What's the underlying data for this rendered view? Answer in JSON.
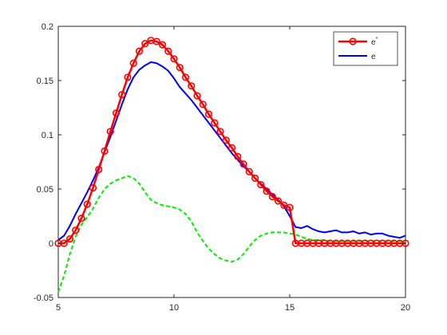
{
  "chart_data": {
    "type": "line",
    "title": "",
    "xlabel": "",
    "ylabel": "",
    "xlim": [
      5,
      20
    ],
    "ylim": [
      -0.05,
      0.2
    ],
    "xticks": [
      5,
      10,
      15,
      20
    ],
    "yticks": [
      -0.05,
      0,
      0.05,
      0.1,
      0.15,
      0.2
    ],
    "xtick_labels": [
      "5",
      "10",
      "15",
      "20"
    ],
    "ytick_labels": [
      "-0.05",
      "0",
      "0.05",
      "0.1",
      "0.15",
      "0.2"
    ],
    "grid": true,
    "legend_position": "top-right",
    "series": [
      {
        "name": "e*",
        "legend_label": "e",
        "legend_superscript": "*",
        "color": "#ff0000",
        "style": "solid",
        "marker": "circle",
        "x": [
          5,
          5.25,
          5.5,
          5.75,
          6,
          6.25,
          6.5,
          6.75,
          7,
          7.25,
          7.5,
          7.75,
          8,
          8.25,
          8.5,
          8.75,
          9,
          9.25,
          9.5,
          9.75,
          10,
          10.25,
          10.5,
          10.75,
          11,
          11.25,
          11.5,
          11.75,
          12,
          12.25,
          12.5,
          12.75,
          13,
          13.25,
          13.5,
          13.75,
          14,
          14.25,
          14.5,
          14.75,
          15,
          15.25,
          15.5,
          15.75,
          16,
          16.25,
          16.5,
          16.75,
          17,
          17.25,
          17.5,
          17.75,
          18,
          18.25,
          18.5,
          18.75,
          19,
          19.25,
          19.5,
          19.75,
          20
        ],
        "y": [
          0,
          0,
          0.004,
          0.012,
          0.023,
          0.036,
          0.051,
          0.068,
          0.085,
          0.103,
          0.12,
          0.137,
          0.153,
          0.166,
          0.177,
          0.184,
          0.187,
          0.186,
          0.183,
          0.177,
          0.17,
          0.162,
          0.153,
          0.145,
          0.136,
          0.128,
          0.119,
          0.111,
          0.103,
          0.095,
          0.088,
          0.08,
          0.073,
          0.066,
          0.06,
          0.054,
          0.048,
          0.043,
          0.039,
          0.035,
          0.033,
          0,
          0,
          0,
          0,
          0,
          0,
          0,
          0,
          0,
          0,
          0,
          0,
          0,
          0,
          0,
          0,
          0,
          0,
          0,
          0
        ]
      },
      {
        "name": "e",
        "legend_label": "e",
        "color": "#0000ff",
        "style": "solid",
        "marker": "none",
        "x": [
          5,
          5.25,
          5.5,
          5.75,
          6,
          6.25,
          6.5,
          6.75,
          7,
          7.25,
          7.5,
          7.75,
          8,
          8.25,
          8.5,
          8.75,
          9,
          9.25,
          9.5,
          9.75,
          10,
          10.25,
          10.5,
          10.75,
          11,
          11.25,
          11.5,
          11.75,
          12,
          12.25,
          12.5,
          12.75,
          13,
          13.25,
          13.5,
          13.75,
          14,
          14.25,
          14.5,
          14.75,
          15,
          15.25,
          15.5,
          15.75,
          16,
          16.25,
          16.5,
          16.75,
          17,
          17.25,
          17.5,
          17.75,
          18,
          18.25,
          18.5,
          18.75,
          19,
          19.25,
          19.5,
          19.75,
          20
        ],
        "y": [
          0.003,
          0.007,
          0.016,
          0.027,
          0.037,
          0.047,
          0.058,
          0.07,
          0.084,
          0.098,
          0.113,
          0.128,
          0.142,
          0.153,
          0.16,
          0.164,
          0.167,
          0.166,
          0.163,
          0.159,
          0.152,
          0.144,
          0.138,
          0.132,
          0.125,
          0.118,
          0.111,
          0.104,
          0.097,
          0.09,
          0.083,
          0.077,
          0.071,
          0.066,
          0.06,
          0.055,
          0.05,
          0.045,
          0.04,
          0.034,
          0.025,
          0.015,
          0.014,
          0.016,
          0.013,
          0.011,
          0.01,
          0.011,
          0.012,
          0.01,
          0.01,
          0.011,
          0.009,
          0.01,
          0.008,
          0.009,
          0.009,
          0.007,
          0.006,
          0.005,
          0.007
        ]
      },
      {
        "name": "",
        "color": "#00ee00",
        "style": "dashed",
        "marker": "none",
        "x": [
          5,
          5.25,
          5.5,
          5.75,
          6,
          6.25,
          6.5,
          6.75,
          7,
          7.25,
          7.5,
          7.75,
          8,
          8.25,
          8.5,
          8.75,
          9,
          9.25,
          9.5,
          9.75,
          10,
          10.25,
          10.5,
          10.75,
          11,
          11.25,
          11.5,
          11.75,
          12,
          12.25,
          12.5,
          12.75,
          13,
          13.25,
          13.5,
          13.75,
          14,
          14.25,
          14.5,
          14.75,
          15,
          15.25,
          15.5,
          15.75,
          16,
          16.25,
          16.5,
          16.75,
          17,
          17.25,
          17.5,
          17.75,
          18,
          18.25,
          18.5,
          18.75,
          19,
          19.25,
          19.5,
          19.75,
          20
        ],
        "y": [
          -0.045,
          -0.03,
          -0.01,
          0.006,
          0.017,
          0.024,
          0.032,
          0.042,
          0.05,
          0.055,
          0.058,
          0.06,
          0.062,
          0.06,
          0.055,
          0.047,
          0.04,
          0.037,
          0.035,
          0.034,
          0.033,
          0.031,
          0.027,
          0.02,
          0.01,
          0.002,
          -0.005,
          -0.01,
          -0.014,
          -0.016,
          -0.017,
          -0.015,
          -0.01,
          -0.003,
          0.003,
          0.007,
          0.009,
          0.01,
          0.01,
          0.01,
          0.009,
          0.008,
          0.006,
          0.004,
          0.003,
          0.003,
          0.003,
          0.002,
          0.002,
          0.002,
          0.002,
          0.002,
          0.002,
          0.002,
          0.002,
          0.002,
          0.002,
          0.002,
          0.002,
          0.002,
          0.002
        ]
      }
    ]
  }
}
